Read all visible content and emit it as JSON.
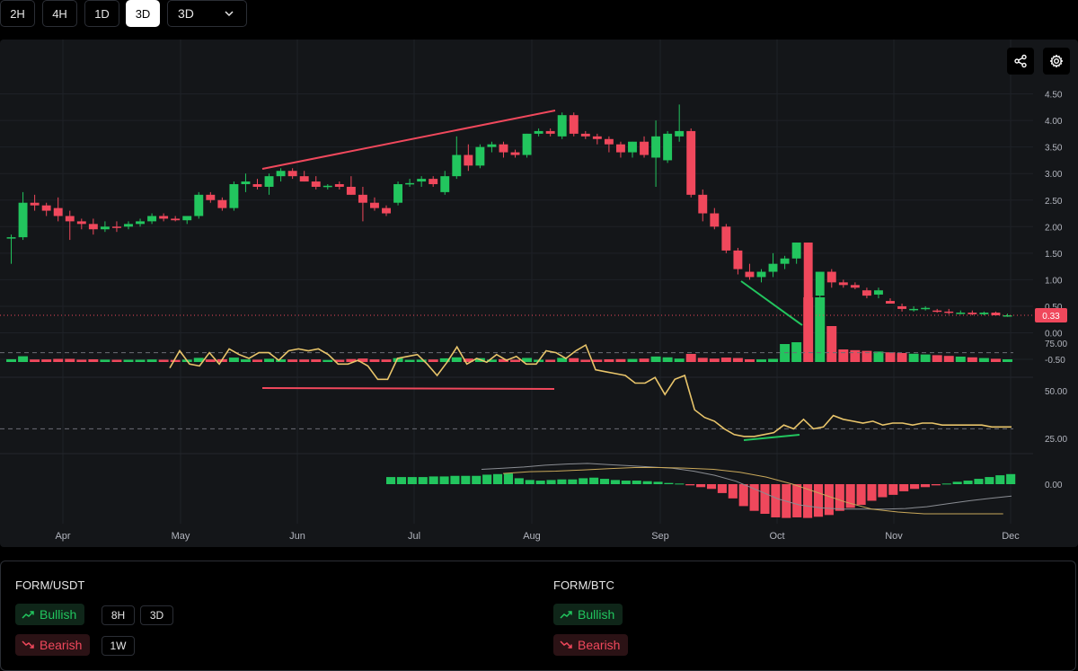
{
  "timeframes": [
    {
      "label": "2H",
      "active": false
    },
    {
      "label": "4H",
      "active": false
    },
    {
      "label": "1D",
      "active": false
    },
    {
      "label": "3D",
      "active": true
    }
  ],
  "timeframe_select": {
    "value": "3D"
  },
  "chart": {
    "current_price": "0.33",
    "price_ticks": [
      "4.50",
      "4.00",
      "3.50",
      "3.00",
      "2.50",
      "2.00",
      "1.50",
      "1.00",
      "0.50",
      "0.00",
      "-0.50"
    ],
    "price_tick_values": [
      4.5,
      4.0,
      3.5,
      3.0,
      2.5,
      2.0,
      1.5,
      1.0,
      0.5,
      0.0,
      -0.5
    ],
    "rsi_ticks": [
      "75.00",
      "50.00",
      "25.00"
    ],
    "macd_ticks": [
      "0.00"
    ],
    "month_labels": [
      "Apr",
      "May",
      "Jun",
      "Jul",
      "Aug",
      "Sep",
      "Oct",
      "Nov",
      "Dec"
    ],
    "up_color": "#22c55e",
    "down_color": "#f0485c",
    "rsi_color": "#e8c46a"
  },
  "chart_data": {
    "type": "candlestick",
    "x_axis_labels": [
      "Apr",
      "May",
      "Jun",
      "Jul",
      "Aug",
      "Sep",
      "Oct",
      "Nov",
      "Dec"
    ],
    "ohlc": [
      [
        1.8,
        1.85,
        1.3,
        1.8
      ],
      [
        1.8,
        2.65,
        1.75,
        2.45
      ],
      [
        2.45,
        2.6,
        2.3,
        2.4
      ],
      [
        2.4,
        2.45,
        2.2,
        2.3
      ],
      [
        2.35,
        2.55,
        2.1,
        2.2
      ],
      [
        2.2,
        2.3,
        1.75,
        2.1
      ],
      [
        2.1,
        2.15,
        1.95,
        2.05
      ],
      [
        2.05,
        2.15,
        1.85,
        1.95
      ],
      [
        1.95,
        2.1,
        1.9,
        2.0
      ],
      [
        2.0,
        2.1,
        1.9,
        1.98
      ],
      [
        2.0,
        2.1,
        1.95,
        2.05
      ],
      [
        2.05,
        2.15,
        2.0,
        2.1
      ],
      [
        2.1,
        2.25,
        2.05,
        2.2
      ],
      [
        2.2,
        2.25,
        2.1,
        2.15
      ],
      [
        2.15,
        2.2,
        2.1,
        2.12
      ],
      [
        2.12,
        2.2,
        2.05,
        2.2
      ],
      [
        2.2,
        2.65,
        2.15,
        2.6
      ],
      [
        2.6,
        2.65,
        2.45,
        2.5
      ],
      [
        2.5,
        2.55,
        2.3,
        2.35
      ],
      [
        2.35,
        2.85,
        2.3,
        2.8
      ],
      [
        2.8,
        3.0,
        2.65,
        2.85
      ],
      [
        2.8,
        2.9,
        2.7,
        2.75
      ],
      [
        2.75,
        3.0,
        2.6,
        2.95
      ],
      [
        2.95,
        3.1,
        2.85,
        3.05
      ],
      [
        3.05,
        3.1,
        2.9,
        2.95
      ],
      [
        2.95,
        3.05,
        2.85,
        2.85
      ],
      [
        2.85,
        2.95,
        2.7,
        2.75
      ],
      [
        2.75,
        2.8,
        2.7,
        2.77
      ],
      [
        2.8,
        2.85,
        2.7,
        2.75
      ],
      [
        2.75,
        2.95,
        2.6,
        2.6
      ],
      [
        2.6,
        2.75,
        2.1,
        2.45
      ],
      [
        2.45,
        2.55,
        2.3,
        2.35
      ],
      [
        2.35,
        2.4,
        2.2,
        2.25
      ],
      [
        2.45,
        2.85,
        2.4,
        2.8
      ],
      [
        2.8,
        2.9,
        2.75,
        2.82
      ],
      [
        2.85,
        2.95,
        2.75,
        2.9
      ],
      [
        2.9,
        2.95,
        2.75,
        2.8
      ],
      [
        2.65,
        3.05,
        2.6,
        2.95
      ],
      [
        2.95,
        3.7,
        2.9,
        3.35
      ],
      [
        3.35,
        3.55,
        3.05,
        3.15
      ],
      [
        3.15,
        3.55,
        3.1,
        3.5
      ],
      [
        3.5,
        3.6,
        3.4,
        3.55
      ],
      [
        3.55,
        3.6,
        3.3,
        3.4
      ],
      [
        3.4,
        3.45,
        3.3,
        3.35
      ],
      [
        3.35,
        3.75,
        3.3,
        3.75
      ],
      [
        3.75,
        3.85,
        3.7,
        3.8
      ],
      [
        3.8,
        3.85,
        3.7,
        3.75
      ],
      [
        3.7,
        4.15,
        3.65,
        4.1
      ],
      [
        4.1,
        4.15,
        3.7,
        3.75
      ],
      [
        3.75,
        3.8,
        3.65,
        3.7
      ],
      [
        3.7,
        3.75,
        3.55,
        3.65
      ],
      [
        3.65,
        3.7,
        3.4,
        3.55
      ],
      [
        3.55,
        3.6,
        3.3,
        3.4
      ],
      [
        3.4,
        3.6,
        3.3,
        3.6
      ],
      [
        3.6,
        3.7,
        3.3,
        3.35
      ],
      [
        3.3,
        4.0,
        2.75,
        3.7
      ],
      [
        3.25,
        3.8,
        3.2,
        3.75
      ],
      [
        3.7,
        4.3,
        3.6,
        3.8
      ],
      [
        3.8,
        3.85,
        2.55,
        2.6
      ],
      [
        2.6,
        2.7,
        2.1,
        2.25
      ],
      [
        2.25,
        2.35,
        1.95,
        2.0
      ],
      [
        2.0,
        2.05,
        1.5,
        1.55
      ],
      [
        1.55,
        1.6,
        1.1,
        1.2
      ],
      [
        1.15,
        1.3,
        1.0,
        1.05
      ],
      [
        1.05,
        1.2,
        0.95,
        1.15
      ],
      [
        1.15,
        1.5,
        1.05,
        1.3
      ],
      [
        1.3,
        1.45,
        1.2,
        1.4
      ],
      [
        1.4,
        1.7,
        1.3,
        1.7
      ],
      [
        1.7,
        1.7,
        0.55,
        0.6
      ],
      [
        0.7,
        1.15,
        0.6,
        1.15
      ],
      [
        1.15,
        1.2,
        0.85,
        0.95
      ],
      [
        0.95,
        1.0,
        0.85,
        0.9
      ],
      [
        0.9,
        0.95,
        0.82,
        0.85
      ],
      [
        0.8,
        0.85,
        0.65,
        0.7
      ],
      [
        0.72,
        0.85,
        0.65,
        0.8
      ],
      [
        0.6,
        0.65,
        0.55,
        0.55
      ],
      [
        0.5,
        0.55,
        0.4,
        0.45
      ],
      [
        0.45,
        0.5,
        0.4,
        0.45
      ],
      [
        0.45,
        0.5,
        0.42,
        0.47
      ],
      [
        0.42,
        0.45,
        0.38,
        0.4
      ],
      [
        0.4,
        0.45,
        0.35,
        0.38
      ],
      [
        0.38,
        0.42,
        0.35,
        0.38
      ],
      [
        0.38,
        0.42,
        0.33,
        0.35
      ],
      [
        0.35,
        0.4,
        0.33,
        0.38
      ],
      [
        0.38,
        0.4,
        0.33,
        0.33
      ],
      [
        0.33,
        0.36,
        0.3,
        0.33
      ]
    ],
    "rsi": [
      62,
      71,
      64,
      63,
      70,
      64,
      72,
      69,
      67,
      70,
      70,
      66,
      71,
      72,
      71,
      72,
      69,
      64,
      64,
      66,
      63,
      56,
      56,
      67,
      68,
      69,
      64,
      58,
      65,
      73,
      64,
      67,
      65,
      69,
      66,
      68,
      64,
      64,
      71,
      70,
      67,
      71,
      74,
      61,
      60,
      59,
      58,
      54,
      54,
      57,
      48,
      56,
      58,
      40,
      36,
      34,
      30,
      27,
      26,
      26,
      27,
      28,
      32,
      30,
      35,
      30,
      31,
      37,
      35,
      34,
      33,
      34,
      32,
      33,
      33,
      32,
      33,
      33,
      32,
      32,
      32,
      32,
      32,
      31,
      31,
      31
    ],
    "macd_hist": [
      0,
      0,
      0,
      0,
      0,
      0,
      0,
      0,
      0,
      0,
      0,
      0,
      0,
      0,
      0,
      0,
      0,
      0,
      0,
      0,
      0,
      0,
      0,
      0,
      0,
      0,
      0,
      0,
      0,
      0,
      0,
      0,
      0.12,
      0.12,
      0.12,
      0.12,
      0.13,
      0.13,
      0.14,
      0.14,
      0.14,
      0.16,
      0.17,
      0.18,
      0.1,
      0.07,
      0.06,
      0.07,
      0.08,
      0.08,
      0.1,
      0.11,
      0.09,
      0.07,
      0.06,
      0.06,
      0.05,
      0.04,
      0.02,
      0.01,
      -0.02,
      -0.05,
      -0.08,
      -0.15,
      -0.24,
      -0.37,
      -0.45,
      -0.5,
      -0.56,
      -0.57,
      -0.56,
      -0.57,
      -0.55,
      -0.52,
      -0.45,
      -0.4,
      -0.35,
      -0.28,
      -0.22,
      -0.18,
      -0.12,
      -0.08,
      -0.05,
      -0.02,
      0.01,
      0.04,
      0.06,
      0.09,
      0.12,
      0.15,
      0.17
    ],
    "macd_line": [
      0.25,
      0.27,
      0.29,
      0.32,
      0.34,
      0.35,
      0.33,
      0.31,
      0.29,
      0.27,
      0.22,
      0.15,
      0.05,
      -0.1,
      -0.25,
      -0.35,
      -0.4,
      -0.42,
      -0.42,
      -0.42,
      -0.41,
      -0.38,
      -0.33,
      -0.28,
      -0.24,
      -0.2
    ],
    "signal_line": [
      0.18,
      0.21,
      0.22,
      0.24,
      0.26,
      0.28,
      0.28,
      0.27,
      0.25,
      0.2,
      0.12,
      0,
      -0.15,
      -0.3,
      -0.42,
      -0.47,
      -0.5,
      -0.5,
      -0.5,
      -0.5
    ],
    "ylim": [
      -0.5,
      4.5
    ]
  },
  "bottom": {
    "usdt": {
      "pair": "FORM/USDT",
      "bullish": "Bullish",
      "bearish": "Bearish",
      "tags": [
        "8H",
        "3D",
        "1W"
      ]
    },
    "btc": {
      "pair": "FORM/BTC",
      "bullish": "Bullish",
      "bearish": "Bearish"
    }
  }
}
